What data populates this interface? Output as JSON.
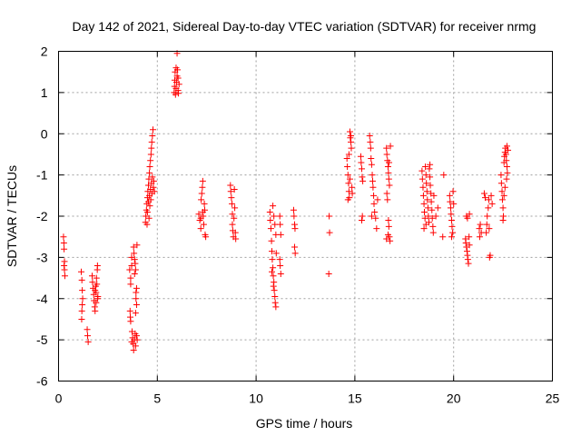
{
  "chart_data": {
    "type": "scatter",
    "title": "Day 142 of 2021, Sidereal Day-to-day VTEC variation (SDTVAR) for receiver nrmg",
    "xlabel": "GPS time / hours",
    "ylabel": "SDTVAR / TECUs",
    "xlim": [
      0,
      25
    ],
    "ylim": [
      -6,
      2
    ],
    "x_ticks": [
      "0",
      "5",
      "10",
      "15",
      "20",
      "25"
    ],
    "y_ticks": [
      "-6",
      "-5",
      "-4",
      "-3",
      "-2",
      "-1",
      "0",
      "1",
      "2"
    ],
    "grid": true,
    "marker": "+",
    "point_color": "#ff0000",
    "series": [
      {
        "name": "nrmg",
        "points": [
          [
            0.25,
            -2.5
          ],
          [
            0.27,
            -2.65
          ],
          [
            0.28,
            -2.8
          ],
          [
            0.3,
            -3.1
          ],
          [
            0.3,
            -3.3
          ],
          [
            0.32,
            -3.45
          ],
          [
            0.28,
            -3.2
          ],
          [
            1.15,
            -3.35
          ],
          [
            1.18,
            -3.55
          ],
          [
            1.2,
            -3.8
          ],
          [
            1.22,
            -4.0
          ],
          [
            1.2,
            -4.15
          ],
          [
            1.18,
            -4.3
          ],
          [
            1.17,
            -4.5
          ],
          [
            1.45,
            -4.75
          ],
          [
            1.47,
            -4.9
          ],
          [
            1.5,
            -5.05
          ],
          [
            1.7,
            -3.45
          ],
          [
            1.72,
            -3.6
          ],
          [
            1.75,
            -3.75
          ],
          [
            1.78,
            -3.9
          ],
          [
            1.8,
            -4.05
          ],
          [
            1.83,
            -4.2
          ],
          [
            1.85,
            -4.3
          ],
          [
            1.88,
            -3.7
          ],
          [
            1.9,
            -3.85
          ],
          [
            1.92,
            -3.5
          ],
          [
            1.94,
            -3.65
          ],
          [
            1.96,
            -3.3
          ],
          [
            1.97,
            -3.2
          ],
          [
            1.98,
            -4.0
          ],
          [
            1.99,
            -3.95
          ],
          [
            1.85,
            -3.8
          ],
          [
            1.9,
            -4.1
          ],
          [
            3.6,
            -3.3
          ],
          [
            3.65,
            -3.5
          ],
          [
            3.65,
            -3.65
          ],
          [
            3.62,
            -4.3
          ],
          [
            3.63,
            -4.45
          ],
          [
            3.65,
            -4.55
          ],
          [
            3.7,
            -3.0
          ],
          [
            3.7,
            -3.2
          ],
          [
            3.8,
            -2.75
          ],
          [
            3.82,
            -2.9
          ],
          [
            3.85,
            -3.05
          ],
          [
            3.88,
            -3.15
          ],
          [
            3.9,
            -3.3
          ],
          [
            3.92,
            -3.85
          ],
          [
            3.92,
            -4.0
          ],
          [
            3.95,
            -4.15
          ],
          [
            3.97,
            -2.7
          ],
          [
            3.95,
            -3.75
          ],
          [
            3.9,
            -4.35
          ],
          [
            3.85,
            -3.4
          ],
          [
            3.72,
            -4.8
          ],
          [
            3.75,
            -4.95
          ],
          [
            3.78,
            -5.1
          ],
          [
            3.8,
            -5.25
          ],
          [
            3.85,
            -5.0
          ],
          [
            3.88,
            -4.85
          ],
          [
            3.9,
            -5.15
          ],
          [
            3.95,
            -4.9
          ],
          [
            3.98,
            -5.0
          ],
          [
            3.7,
            -5.05
          ],
          [
            4.4,
            -2.15
          ],
          [
            4.42,
            -2.0
          ],
          [
            4.45,
            -1.85
          ],
          [
            4.47,
            -1.7
          ],
          [
            4.5,
            -1.55
          ],
          [
            4.52,
            -1.4
          ],
          [
            4.55,
            -1.25
          ],
          [
            4.57,
            -1.1
          ],
          [
            4.6,
            -0.95
          ],
          [
            4.62,
            -0.8
          ],
          [
            4.65,
            -0.65
          ],
          [
            4.68,
            -0.5
          ],
          [
            4.7,
            -0.35
          ],
          [
            4.72,
            -0.2
          ],
          [
            4.75,
            -0.05
          ],
          [
            4.78,
            0.1
          ],
          [
            4.5,
            -1.9
          ],
          [
            4.55,
            -1.65
          ],
          [
            4.6,
            -1.5
          ],
          [
            4.65,
            -1.35
          ],
          [
            4.7,
            -1.2
          ],
          [
            4.75,
            -1.05
          ],
          [
            4.8,
            -1.3
          ],
          [
            4.82,
            -1.15
          ],
          [
            4.85,
            -1.4
          ],
          [
            4.48,
            -2.2
          ],
          [
            4.58,
            -2.05
          ],
          [
            4.62,
            -1.75
          ],
          [
            4.67,
            -1.6
          ],
          [
            4.73,
            -1.45
          ],
          [
            5.85,
            1.0
          ],
          [
            5.87,
            1.15
          ],
          [
            5.88,
            1.3
          ],
          [
            5.9,
            1.5
          ],
          [
            5.92,
            0.95
          ],
          [
            5.95,
            1.1
          ],
          [
            5.97,
            1.25
          ],
          [
            6.0,
            1.4
          ],
          [
            6.02,
            1.55
          ],
          [
            6.05,
            1.05
          ],
          [
            6.07,
            0.98
          ],
          [
            6.1,
            1.2
          ],
          [
            6.0,
            1.95
          ],
          [
            5.95,
            1.6
          ],
          [
            6.05,
            1.35
          ],
          [
            7.1,
            -1.95
          ],
          [
            7.15,
            -2.1
          ],
          [
            7.2,
            -2.3
          ],
          [
            7.22,
            -1.6
          ],
          [
            7.25,
            -1.45
          ],
          [
            7.28,
            -1.3
          ],
          [
            7.3,
            -1.15
          ],
          [
            7.32,
            -2.0
          ],
          [
            7.35,
            -2.2
          ],
          [
            7.38,
            -1.7
          ],
          [
            7.4,
            -1.85
          ],
          [
            7.42,
            -2.45
          ],
          [
            7.45,
            -2.5
          ],
          [
            7.2,
            -2.05
          ],
          [
            7.3,
            -1.9
          ],
          [
            8.7,
            -1.25
          ],
          [
            8.72,
            -1.4
          ],
          [
            8.75,
            -1.55
          ],
          [
            8.78,
            -1.7
          ],
          [
            8.8,
            -2.2
          ],
          [
            8.82,
            -2.35
          ],
          [
            8.85,
            -2.5
          ],
          [
            8.88,
            -2.05
          ],
          [
            8.9,
            -1.35
          ],
          [
            8.92,
            -1.8
          ],
          [
            8.95,
            -2.4
          ],
          [
            8.97,
            -2.55
          ],
          [
            8.8,
            -1.95
          ],
          [
            10.7,
            -1.9
          ],
          [
            10.72,
            -2.1
          ],
          [
            10.75,
            -2.3
          ],
          [
            10.78,
            -2.6
          ],
          [
            10.8,
            -2.85
          ],
          [
            10.82,
            -3.05
          ],
          [
            10.85,
            -3.25
          ],
          [
            10.87,
            -3.45
          ],
          [
            10.9,
            -3.6
          ],
          [
            10.92,
            -3.8
          ],
          [
            10.95,
            -3.95
          ],
          [
            10.97,
            -4.1
          ],
          [
            11.0,
            -4.2
          ],
          [
            10.85,
            -1.75
          ],
          [
            10.9,
            -2.0
          ],
          [
            10.95,
            -2.2
          ],
          [
            11.0,
            -2.45
          ],
          [
            11.02,
            -2.9
          ],
          [
            10.8,
            -3.35
          ],
          [
            10.88,
            -3.7
          ],
          [
            11.2,
            -2.0
          ],
          [
            11.22,
            -2.2
          ],
          [
            11.25,
            -2.45
          ],
          [
            11.2,
            -3.05
          ],
          [
            11.22,
            -3.2
          ],
          [
            11.25,
            -3.4
          ],
          [
            11.9,
            -1.85
          ],
          [
            11.92,
            -2.0
          ],
          [
            11.95,
            -2.2
          ],
          [
            11.97,
            -2.3
          ],
          [
            11.95,
            -2.75
          ],
          [
            11.98,
            -2.9
          ],
          [
            13.7,
            -2.0
          ],
          [
            13.72,
            -2.4
          ],
          [
            13.68,
            -3.4
          ],
          [
            14.6,
            -0.6
          ],
          [
            14.62,
            -0.8
          ],
          [
            14.65,
            -1.0
          ],
          [
            14.68,
            -1.2
          ],
          [
            14.7,
            -1.4
          ],
          [
            14.72,
            -1.55
          ],
          [
            14.75,
            0.05
          ],
          [
            14.77,
            -0.1
          ],
          [
            14.8,
            -0.2
          ],
          [
            14.82,
            -0.35
          ],
          [
            14.85,
            -1.3
          ],
          [
            14.87,
            -1.45
          ],
          [
            14.7,
            -0.5
          ],
          [
            14.75,
            -1.1
          ],
          [
            14.8,
            -0.05
          ],
          [
            14.65,
            -1.6
          ],
          [
            15.3,
            -0.55
          ],
          [
            15.32,
            -0.7
          ],
          [
            15.35,
            -0.85
          ],
          [
            15.37,
            -1.05
          ],
          [
            15.4,
            -1.15
          ],
          [
            15.38,
            -2.0
          ],
          [
            15.35,
            -2.1
          ],
          [
            15.75,
            -0.05
          ],
          [
            15.78,
            -0.2
          ],
          [
            15.8,
            -0.35
          ],
          [
            15.82,
            -0.6
          ],
          [
            15.85,
            -0.75
          ],
          [
            15.88,
            -1.0
          ],
          [
            15.9,
            -1.15
          ],
          [
            15.92,
            -1.3
          ],
          [
            15.95,
            -1.5
          ],
          [
            15.97,
            -1.7
          ],
          [
            16.0,
            -1.9
          ],
          [
            15.85,
            -2.0
          ],
          [
            16.05,
            -2.05
          ],
          [
            16.1,
            -2.3
          ],
          [
            16.15,
            -1.6
          ],
          [
            16.6,
            -0.35
          ],
          [
            16.62,
            -0.5
          ],
          [
            16.65,
            -0.65
          ],
          [
            16.68,
            -0.8
          ],
          [
            16.7,
            -0.95
          ],
          [
            16.72,
            -1.1
          ],
          [
            16.75,
            -1.25
          ],
          [
            16.62,
            -1.45
          ],
          [
            16.65,
            -1.6
          ],
          [
            16.7,
            -2.1
          ],
          [
            16.72,
            -2.25
          ],
          [
            16.75,
            -2.5
          ],
          [
            16.78,
            -2.6
          ],
          [
            16.6,
            -2.55
          ],
          [
            16.68,
            -2.45
          ],
          [
            16.73,
            -0.7
          ],
          [
            16.8,
            -0.3
          ],
          [
            18.4,
            -0.9
          ],
          [
            18.42,
            -1.1
          ],
          [
            18.45,
            -1.3
          ],
          [
            18.47,
            -1.5
          ],
          [
            18.5,
            -1.7
          ],
          [
            18.52,
            -1.9
          ],
          [
            18.55,
            -2.05
          ],
          [
            18.57,
            -0.8
          ],
          [
            18.6,
            -1.0
          ],
          [
            18.62,
            -1.2
          ],
          [
            18.65,
            -1.4
          ],
          [
            18.67,
            -1.6
          ],
          [
            18.7,
            -1.8
          ],
          [
            18.72,
            -2.0
          ],
          [
            18.75,
            -2.15
          ],
          [
            18.77,
            -0.85
          ],
          [
            18.8,
            -1.05
          ],
          [
            18.82,
            -1.25
          ],
          [
            18.85,
            -1.45
          ],
          [
            18.87,
            -1.65
          ],
          [
            18.9,
            -1.85
          ],
          [
            18.92,
            -2.05
          ],
          [
            18.95,
            -2.25
          ],
          [
            18.97,
            -2.4
          ],
          [
            19.0,
            -1.5
          ],
          [
            18.6,
            -2.2
          ],
          [
            18.5,
            -2.3
          ],
          [
            18.8,
            -0.75
          ],
          [
            19.1,
            -2.0
          ],
          [
            19.2,
            -1.8
          ],
          [
            19.5,
            -1.0
          ],
          [
            19.45,
            -2.5
          ],
          [
            19.8,
            -1.5
          ],
          [
            19.82,
            -1.65
          ],
          [
            19.85,
            -1.8
          ],
          [
            19.87,
            -1.95
          ],
          [
            19.9,
            -2.1
          ],
          [
            19.92,
            -2.25
          ],
          [
            19.95,
            -2.4
          ],
          [
            19.97,
            -1.4
          ],
          [
            20.0,
            -1.7
          ],
          [
            19.9,
            -2.5
          ],
          [
            20.6,
            -2.55
          ],
          [
            20.62,
            -2.65
          ],
          [
            20.65,
            -2.75
          ],
          [
            20.68,
            -2.85
          ],
          [
            20.7,
            -2.95
          ],
          [
            20.72,
            -3.05
          ],
          [
            20.75,
            -3.15
          ],
          [
            20.65,
            -2.0
          ],
          [
            20.7,
            -2.05
          ],
          [
            20.8,
            -1.95
          ],
          [
            20.78,
            -2.5
          ],
          [
            20.8,
            -2.7
          ],
          [
            21.3,
            -2.3
          ],
          [
            21.32,
            -2.5
          ],
          [
            21.35,
            -2.2
          ],
          [
            21.4,
            -2.4
          ],
          [
            21.55,
            -1.45
          ],
          [
            21.6,
            -1.55
          ],
          [
            21.65,
            -2.4
          ],
          [
            21.68,
            -2.2
          ],
          [
            21.7,
            -2.0
          ],
          [
            21.75,
            -1.8
          ],
          [
            21.78,
            -1.6
          ],
          [
            21.8,
            -2.3
          ],
          [
            21.82,
            -3.0
          ],
          [
            21.85,
            -2.95
          ],
          [
            21.9,
            -1.5
          ],
          [
            21.95,
            -1.7
          ],
          [
            22.4,
            -1.0
          ],
          [
            22.42,
            -1.2
          ],
          [
            22.45,
            -1.4
          ],
          [
            22.47,
            -1.6
          ],
          [
            22.5,
            -1.8
          ],
          [
            22.52,
            -2.0
          ],
          [
            22.55,
            -0.7
          ],
          [
            22.57,
            -0.55
          ],
          [
            22.6,
            -0.45
          ],
          [
            22.62,
            -0.35
          ],
          [
            22.65,
            -0.5
          ],
          [
            22.67,
            -0.65
          ],
          [
            22.7,
            -0.8
          ],
          [
            22.72,
            -0.95
          ],
          [
            22.75,
            -0.4
          ],
          [
            22.6,
            -1.3
          ],
          [
            22.68,
            -1.1
          ],
          [
            22.55,
            -1.5
          ],
          [
            22.5,
            -2.1
          ],
          [
            22.7,
            -0.3
          ]
        ]
      }
    ]
  }
}
